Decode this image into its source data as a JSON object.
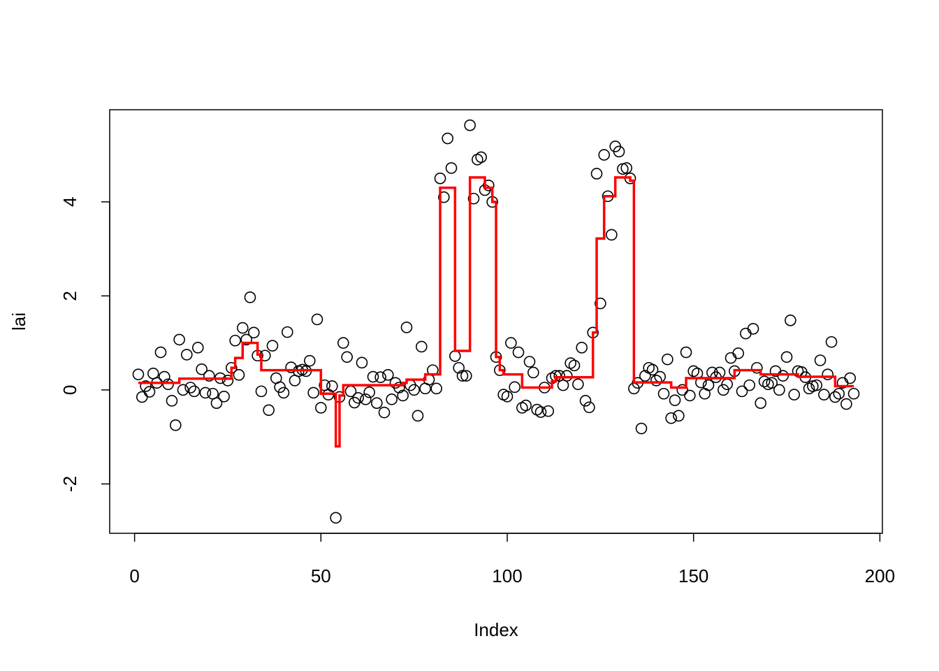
{
  "chart_data": {
    "type": "scatter",
    "xlabel": "Index",
    "ylabel": "lai",
    "x": [
      1,
      2,
      3,
      4,
      5,
      6,
      7,
      8,
      9,
      10,
      11,
      12,
      13,
      14,
      15,
      16,
      17,
      18,
      19,
      20,
      21,
      22,
      23,
      24,
      25,
      26,
      27,
      28,
      29,
      30,
      31,
      32,
      33,
      34,
      35,
      36,
      37,
      38,
      39,
      40,
      41,
      42,
      43,
      44,
      45,
      46,
      47,
      48,
      49,
      50,
      51,
      52,
      53,
      54,
      55,
      56,
      57,
      58,
      59,
      60,
      61,
      62,
      63,
      64,
      65,
      66,
      67,
      68,
      69,
      70,
      71,
      72,
      73,
      74,
      75,
      76,
      77,
      78,
      79,
      80,
      81,
      82,
      83,
      84,
      85,
      86,
      87,
      88,
      89,
      90,
      91,
      92,
      93,
      94,
      95,
      96,
      97,
      98,
      99,
      100,
      101,
      102,
      103,
      104,
      105,
      106,
      107,
      108,
      109,
      110,
      111,
      112,
      113,
      114,
      115,
      116,
      117,
      118,
      119,
      120,
      121,
      122,
      123,
      124,
      125,
      126,
      127,
      128,
      129,
      130,
      131,
      132,
      133,
      134,
      135,
      136,
      137,
      138,
      139,
      140,
      141,
      142,
      143,
      144,
      145,
      146,
      147,
      148,
      149,
      150,
      151,
      152,
      153,
      154,
      155,
      156,
      157,
      158,
      159,
      160,
      161,
      162,
      163,
      164,
      165,
      166,
      167,
      168,
      169,
      170,
      171,
      172,
      173,
      174,
      175,
      176,
      177,
      178,
      179,
      180,
      181,
      182,
      183,
      184,
      185,
      186,
      187,
      188,
      189,
      190,
      191,
      192,
      193
    ],
    "series": [
      {
        "type": "points",
        "color": "#000000",
        "values": [
          0.33,
          -0.15,
          0.08,
          -0.04,
          0.35,
          0.15,
          0.8,
          0.28,
          0.12,
          -0.23,
          -0.75,
          1.07,
          0.0,
          0.75,
          0.05,
          -0.03,
          0.9,
          0.44,
          -0.06,
          0.3,
          -0.08,
          -0.28,
          0.25,
          -0.14,
          0.2,
          0.47,
          1.05,
          0.32,
          1.32,
          1.07,
          1.97,
          1.22,
          0.73,
          -0.03,
          0.73,
          -0.43,
          0.94,
          0.25,
          0.06,
          -0.06,
          1.23,
          0.48,
          0.2,
          0.4,
          0.43,
          0.4,
          0.62,
          -0.06,
          1.5,
          -0.38,
          0.1,
          -0.1,
          0.08,
          -2.72,
          -0.15,
          1.0,
          0.7,
          -0.03,
          -0.27,
          -0.17,
          0.58,
          -0.2,
          -0.05,
          0.28,
          -0.28,
          0.27,
          -0.48,
          0.32,
          -0.2,
          0.15,
          0.05,
          -0.12,
          1.33,
          0.1,
          0.0,
          -0.55,
          0.92,
          0.03,
          0.22,
          0.42,
          0.03,
          4.5,
          4.1,
          5.35,
          4.72,
          0.72,
          0.47,
          0.3,
          0.3,
          5.63,
          4.07,
          4.9,
          4.95,
          4.25,
          4.35,
          4.0,
          0.7,
          0.42,
          -0.1,
          -0.14,
          1.0,
          0.06,
          0.8,
          -0.38,
          -0.33,
          0.6,
          0.37,
          -0.42,
          -0.47,
          0.05,
          -0.45,
          0.25,
          0.3,
          0.3,
          0.1,
          0.3,
          0.57,
          0.52,
          0.12,
          0.9,
          -0.23,
          -0.37,
          1.22,
          4.6,
          1.84,
          5.0,
          4.12,
          3.3,
          5.18,
          5.07,
          4.7,
          4.72,
          4.5,
          0.03,
          0.15,
          -0.82,
          0.3,
          0.47,
          0.43,
          0.2,
          0.28,
          -0.08,
          0.65,
          -0.6,
          -0.22,
          -0.55,
          0.0,
          0.8,
          -0.12,
          0.4,
          0.35,
          0.16,
          -0.08,
          0.1,
          0.37,
          0.27,
          0.37,
          0.0,
          0.12,
          0.68,
          0.4,
          0.78,
          -0.03,
          1.2,
          0.1,
          1.3,
          0.47,
          -0.28,
          0.18,
          0.12,
          0.15,
          0.4,
          0.0,
          0.3,
          0.7,
          1.48,
          -0.1,
          0.4,
          0.38,
          0.27,
          0.03,
          0.08,
          0.1,
          0.63,
          -0.1,
          0.33,
          1.02,
          -0.15,
          -0.08,
          0.15,
          -0.3,
          0.25,
          -0.08
        ]
      },
      {
        "type": "step",
        "color": "#ff0000",
        "values": [
          0.15,
          0.15,
          0.15,
          0.15,
          0.15,
          0.15,
          0.15,
          0.15,
          0.15,
          0.15,
          0.15,
          0.24,
          0.24,
          0.24,
          0.24,
          0.24,
          0.24,
          0.24,
          0.24,
          0.24,
          0.24,
          0.24,
          0.24,
          0.24,
          0.24,
          0.47,
          0.68,
          0.68,
          1.0,
          1.0,
          1.0,
          1.0,
          0.75,
          0.42,
          0.42,
          0.42,
          0.42,
          0.42,
          0.42,
          0.42,
          0.42,
          0.42,
          0.42,
          0.42,
          0.42,
          0.42,
          0.42,
          0.42,
          0.42,
          -0.08,
          -0.08,
          -0.08,
          -0.08,
          -1.2,
          -0.12,
          0.1,
          0.1,
          0.1,
          0.1,
          0.1,
          0.1,
          0.1,
          0.1,
          0.1,
          0.1,
          0.1,
          0.1,
          0.1,
          0.1,
          0.1,
          0.1,
          0.15,
          0.22,
          0.22,
          0.22,
          0.22,
          0.22,
          0.33,
          0.33,
          0.33,
          0.33,
          4.3,
          4.3,
          4.3,
          4.3,
          0.83,
          0.83,
          0.83,
          0.83,
          4.52,
          4.52,
          4.52,
          4.52,
          4.3,
          4.3,
          4.0,
          0.7,
          0.42,
          0.33,
          0.33,
          0.33,
          0.33,
          0.33,
          0.05,
          0.05,
          0.05,
          0.05,
          0.05,
          0.05,
          0.05,
          0.05,
          0.18,
          0.27,
          0.27,
          0.27,
          0.27,
          0.27,
          0.27,
          0.27,
          0.27,
          0.27,
          0.27,
          1.22,
          3.22,
          3.22,
          4.12,
          4.12,
          4.12,
          4.52,
          4.52,
          4.52,
          4.52,
          4.45,
          0.16,
          0.16,
          0.16,
          0.16,
          0.16,
          0.16,
          0.16,
          0.16,
          0.16,
          0.16,
          0.05,
          0.05,
          0.05,
          0.05,
          0.25,
          0.25,
          0.25,
          0.25,
          0.25,
          0.25,
          0.25,
          0.25,
          0.25,
          0.25,
          0.25,
          0.25,
          0.25,
          0.42,
          0.42,
          0.42,
          0.42,
          0.42,
          0.42,
          0.42,
          0.33,
          0.33,
          0.33,
          0.33,
          0.33,
          0.33,
          0.33,
          0.33,
          0.33,
          0.33,
          0.28,
          0.28,
          0.28,
          0.28,
          0.28,
          0.28,
          0.28,
          0.28,
          0.28,
          0.28,
          0.08,
          0.08,
          0.08,
          0.08,
          0.08,
          0.08
        ]
      }
    ],
    "xlim": [
      -6.68,
      200.68
    ],
    "xticks": [
      0,
      50,
      100,
      150,
      200
    ],
    "ylim": [
      -3.05,
      5.96
    ],
    "yticks": [
      -2,
      0,
      2,
      4
    ]
  }
}
